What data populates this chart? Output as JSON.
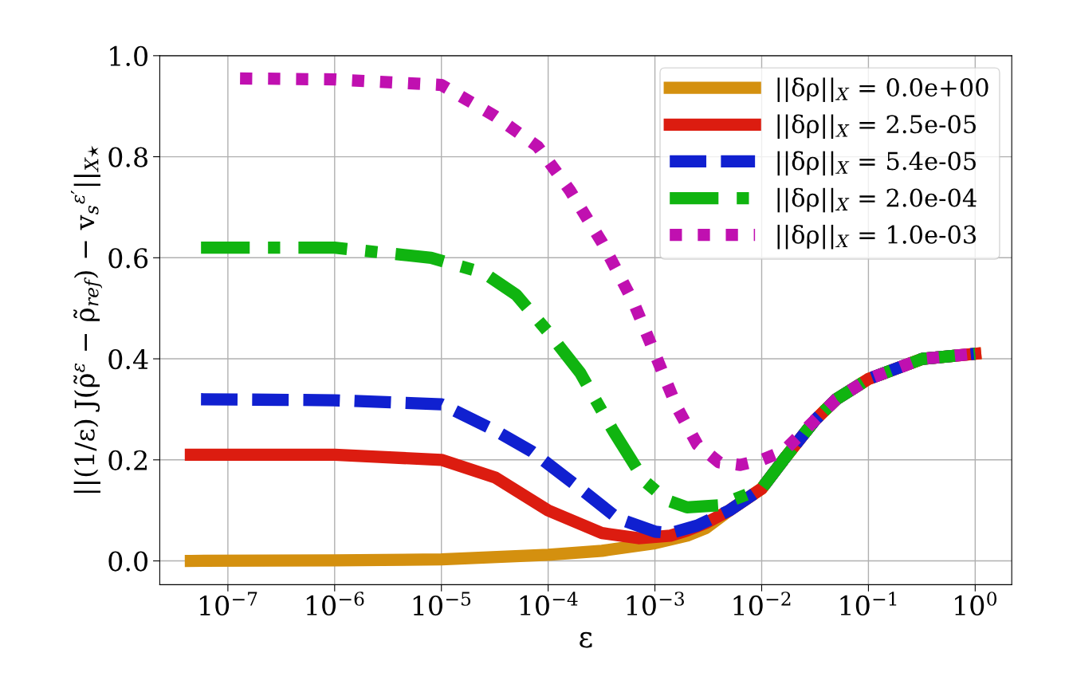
{
  "chart_data": {
    "type": "line",
    "xlabel": "ε",
    "ylabel": "||(1/ε) J(ρ̃$^{ε}$ − ρ̃$_{ref}$) − v$_{s}$$^{ε′}$||$_{X⋆}$",
    "log": "x",
    "grid": true,
    "legend": "top right",
    "xlim": [
      2.3e-08,
      2.2
    ],
    "ylim": [
      -0.047,
      1.0
    ],
    "xticks": [
      {
        "value": 1e-07,
        "label": "10$^{−7}$"
      },
      {
        "value": 1e-06,
        "label": "10$^{−6}$"
      },
      {
        "value": 1e-05,
        "label": "10$^{−5}$"
      },
      {
        "value": 0.0001,
        "label": "10$^{−4}$"
      },
      {
        "value": 0.001,
        "label": "10$^{−3}$"
      },
      {
        "value": 0.01,
        "label": "10$^{−2}$"
      },
      {
        "value": 0.1,
        "label": "10$^{−1}$"
      },
      {
        "value": 1,
        "label": "10$^{0}$"
      }
    ],
    "yticks": [
      {
        "value": 0,
        "label": "0.0"
      },
      0.2,
      0.4,
      0.6,
      0.8,
      {
        "value": 1,
        "label": "1.0"
      }
    ],
    "series": [
      {
        "name": "||δρ||$_{X}$ = 0.0e+00",
        "color": "#d4900f",
        "line_style": "solid",
        "x": [
          4.5e-08,
          1e-06,
          1e-05,
          0.0001,
          0.00032,
          0.001,
          0.002,
          0.003,
          0.005,
          0.01,
          0.016,
          0.032,
          0.05,
          0.1,
          0.32,
          1
        ],
        "values": [
          0.0,
          0.001,
          0.003,
          0.012,
          0.02,
          0.035,
          0.05,
          0.065,
          0.1,
          0.143,
          0.2,
          0.28,
          0.32,
          0.36,
          0.4,
          0.41
        ]
      },
      {
        "name": "||δρ||$_{X}$ = 2.5e-05",
        "color": "#dc1c10",
        "line_style": "solid",
        "x": [
          4.5e-08,
          1e-06,
          1e-05,
          3.2e-05,
          0.0001,
          0.00032,
          0.0007,
          0.0014,
          0.002,
          0.003,
          0.005,
          0.01,
          0.016,
          0.032,
          0.05,
          0.1,
          0.32,
          1
        ],
        "values": [
          0.21,
          0.21,
          0.2,
          0.165,
          0.1,
          0.055,
          0.045,
          0.05,
          0.06,
          0.075,
          0.1,
          0.143,
          0.2,
          0.28,
          0.32,
          0.36,
          0.4,
          0.41
        ]
      },
      {
        "name": "||δρ||$_{X}$ = 5.4e-05",
        "color": "#1020d0",
        "line_style": "dashed",
        "x": [
          5.6e-08,
          1e-06,
          1e-05,
          3.2e-05,
          7e-05,
          0.0002,
          0.00045,
          0.001,
          0.0014,
          0.0025,
          0.005,
          0.01,
          0.016,
          0.032,
          0.05,
          0.1,
          0.32,
          1
        ],
        "values": [
          0.32,
          0.318,
          0.31,
          0.258,
          0.217,
          0.143,
          0.084,
          0.058,
          0.055,
          0.07,
          0.1,
          0.143,
          0.2,
          0.28,
          0.32,
          0.36,
          0.4,
          0.41
        ]
      },
      {
        "name": "||δρ||$_{X}$ = 2.0e-04",
        "color": "#10b410",
        "line_style": "dashdot",
        "x": [
          5.6e-08,
          1e-06,
          8e-06,
          2.5e-05,
          5e-05,
          0.0001,
          0.0002,
          0.0004,
          0.0008,
          0.0013,
          0.002,
          0.004,
          0.01,
          0.016,
          0.032,
          0.05,
          0.1,
          0.32,
          1
        ],
        "values": [
          0.62,
          0.62,
          0.6,
          0.57,
          0.527,
          0.453,
          0.372,
          0.26,
          0.158,
          0.12,
          0.106,
          0.11,
          0.143,
          0.2,
          0.28,
          0.32,
          0.36,
          0.4,
          0.41
        ]
      },
      {
        "name": "||δρ||$_{X}$ = 1.0e-03",
        "color": "#c010b0",
        "line_style": "dotted",
        "x": [
          1.3e-07,
          1e-06,
          1e-05,
          3.2e-05,
          8e-05,
          0.00016,
          0.00032,
          0.00063,
          0.001,
          0.0016,
          0.0025,
          0.004,
          0.0063,
          0.01,
          0.016,
          0.032,
          0.05,
          0.1,
          0.32,
          1
        ],
        "values": [
          0.955,
          0.953,
          0.942,
          0.88,
          0.82,
          0.733,
          0.63,
          0.512,
          0.41,
          0.305,
          0.23,
          0.195,
          0.19,
          0.2,
          0.217,
          0.28,
          0.32,
          0.36,
          0.4,
          0.41
        ]
      }
    ]
  }
}
